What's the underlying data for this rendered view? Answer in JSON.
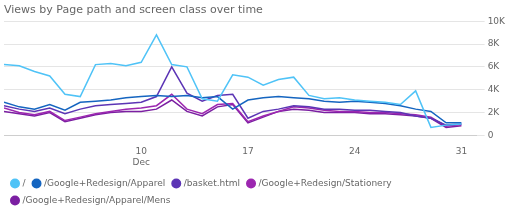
{
  "chart_data": {
    "type": "line",
    "title": "Views by Page path and screen class over time",
    "x": [
      1,
      2,
      3,
      4,
      5,
      6,
      7,
      8,
      9,
      10,
      11,
      12,
      13,
      14,
      15,
      16,
      17,
      18,
      19,
      20,
      21,
      22,
      23,
      24,
      25,
      26,
      27,
      28,
      29,
      30,
      31
    ],
    "xlim": [
      1,
      32
    ],
    "xticks": [
      {
        "value": 10,
        "label": "10\nDec"
      },
      17,
      24,
      31
    ],
    "ylim": [
      0,
      10000
    ],
    "yticks": [
      0,
      {
        "value": 2000,
        "label": "2K"
      },
      {
        "value": 4000,
        "label": "4K"
      },
      {
        "value": 6000,
        "label": "6K"
      },
      {
        "value": 8000,
        "label": "8K"
      },
      {
        "value": 10000,
        "label": "10K"
      }
    ],
    "grid": true,
    "legend": "bottom",
    "series": [
      {
        "name": "/",
        "color": "#4fc3f7",
        "values": [
          6200,
          6100,
          5600,
          5200,
          3600,
          3400,
          6200,
          6300,
          6100,
          6400,
          8800,
          6200,
          6000,
          3200,
          3000,
          5300,
          5100,
          4400,
          4900,
          5100,
          3500,
          3200,
          3300,
          3100,
          3000,
          2900,
          2700,
          3900,
          700,
          900,
          1000
        ]
      },
      {
        "name": "/Google+Redesign/Apparel",
        "color": "#1565c0",
        "values": [
          2900,
          2500,
          2300,
          2700,
          2200,
          2900,
          3000,
          3100,
          3300,
          3400,
          3500,
          3400,
          3500,
          3300,
          3400,
          2300,
          3100,
          3300,
          3400,
          3300,
          3200,
          3000,
          2900,
          3000,
          2900,
          2800,
          2600,
          2300,
          2100,
          1100,
          1100
        ]
      },
      {
        "name": "/basket.html",
        "color": "#5c35b5",
        "values": [
          2600,
          2300,
          2100,
          2400,
          1900,
          2300,
          2600,
          2700,
          2800,
          2900,
          3400,
          6000,
          3700,
          3000,
          3500,
          3600,
          1500,
          2100,
          2300,
          2600,
          2500,
          2300,
          2300,
          2200,
          2200,
          2100,
          2000,
          1700,
          1500,
          900,
          1000
        ]
      },
      {
        "name": "/Google+Redesign/Stationery",
        "color": "#9c27b0",
        "values": [
          2400,
          2000,
          1800,
          2100,
          1300,
          1600,
          1900,
          2100,
          2300,
          2400,
          2600,
          3600,
          2300,
          1900,
          2700,
          2800,
          1200,
          1700,
          2100,
          2500,
          2400,
          2200,
          2100,
          2100,
          2000,
          2000,
          1900,
          1800,
          1600,
          800,
          950
        ]
      },
      {
        "name": "/Google+Redesign/Apparel/Mens",
        "color": "#7b1fa2",
        "values": [
          2100,
          1900,
          1700,
          2000,
          1200,
          1500,
          1800,
          2000,
          2100,
          2100,
          2300,
          3100,
          2100,
          1700,
          2500,
          2700,
          1100,
          1600,
          2100,
          2300,
          2200,
          2000,
          2000,
          2000,
          1900,
          1900,
          1800,
          1700,
          1500,
          700,
          850
        ]
      }
    ]
  }
}
